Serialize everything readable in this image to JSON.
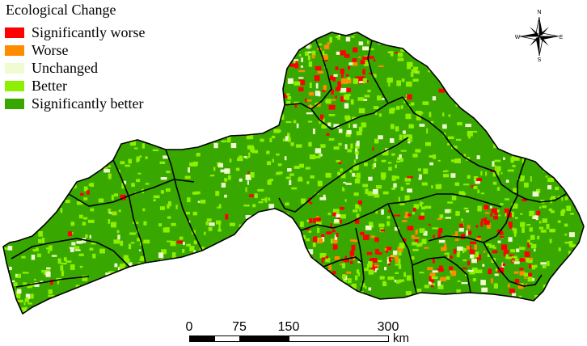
{
  "legend": {
    "title": "Ecological Change",
    "items": [
      {
        "label": "Significantly worse",
        "color": "#ff0000"
      },
      {
        "label": "Worse",
        "color": "#ff8c00"
      },
      {
        "label": "Unchanged",
        "color": "#f0fccf"
      },
      {
        "label": "Better",
        "color": "#8cf000"
      },
      {
        "label": "Significantly better",
        "color": "#38a800"
      }
    ]
  },
  "compass": {
    "n": "N",
    "s": "S",
    "e": "E",
    "w": "W"
  },
  "scale_bar": {
    "ticks": [
      "0",
      "75",
      "150",
      "300"
    ],
    "unit": "km"
  },
  "map_colors": {
    "boundary": "#000000",
    "base_green": "#38a800",
    "light_green": "#8cf000",
    "pale": "#f0fccf",
    "red": "#ff0000",
    "orange": "#ff8c00"
  }
}
